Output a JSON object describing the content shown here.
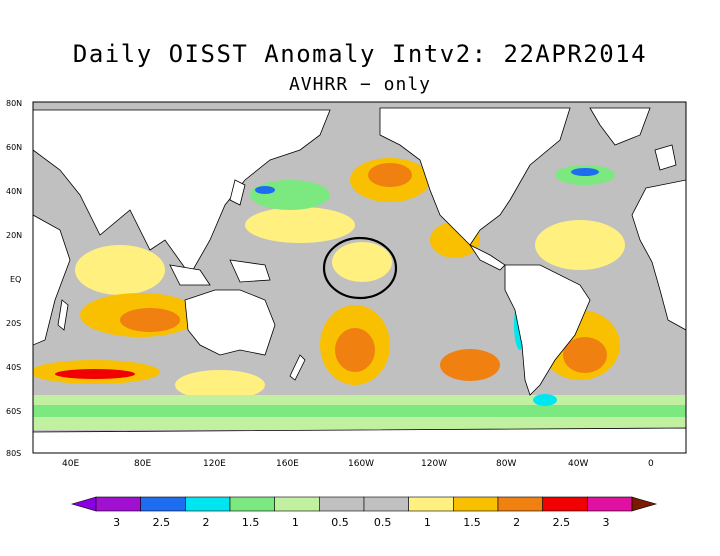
{
  "title": "Daily OISST Anomaly Intv2: 22APR2014",
  "subtitle": "AVHRR − only",
  "lat_labels": [
    "80N",
    "60N",
    "40N",
    "20N",
    "EQ",
    "20S",
    "40S",
    "60S",
    "80S"
  ],
  "lon_labels": [
    "40E",
    "80E",
    "120E",
    "160E",
    "160W",
    "120W",
    "80W",
    "40W",
    "0"
  ],
  "colorbar": {
    "labels": [
      "3",
      "2.5",
      "2",
      "1.5",
      "1",
      "0.5",
      "0.5",
      "1",
      "1.5",
      "2",
      "2.5",
      "3"
    ],
    "colors": [
      "#a010d0",
      "#1e6cf0",
      "#00e6f0",
      "#7ce880",
      "#c0f0a0",
      "#c0c0c0",
      "#c0c0c0",
      "#fff080",
      "#f8c000",
      "#f08010",
      "#f00000",
      "#e010a0"
    ],
    "low_arrow_color": "#8a00e0",
    "high_arrow_color": "#7a1a00"
  },
  "colors": {
    "ocean_neutral": "#c0c0c0",
    "land": "#ffffff",
    "warm_light": "#fff080",
    "warm_mid": "#f8c000",
    "warm_high": "#f08010",
    "hot": "#f00000",
    "cool_light": "#c0f0a0",
    "cool_mid": "#7ce880",
    "cold": "#00e6f0",
    "colder": "#1e6cf0"
  }
}
